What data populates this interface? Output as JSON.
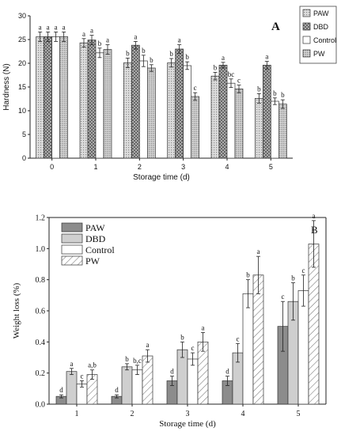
{
  "chart_data": [
    {
      "type": "bar",
      "panel_label": "A",
      "title": "",
      "xlabel": "Storage time (d)",
      "ylabel": "Hardness (N)",
      "ylim": [
        0,
        30
      ],
      "yticks": [
        0,
        5,
        10,
        15,
        20,
        25,
        30
      ],
      "categories": [
        "0",
        "1",
        "2",
        "3",
        "4",
        "5"
      ],
      "legend_position": "right-outside",
      "grid": false,
      "series": [
        {
          "name": "PAW",
          "pattern": "pawA",
          "values": [
            25.6,
            24.3,
            20.1,
            20.1,
            17.3,
            12.6
          ],
          "errors": [
            1.0,
            0.9,
            1.0,
            0.9,
            0.8,
            1.0
          ],
          "letters": [
            "a",
            "a",
            "b",
            "b",
            "b",
            "b"
          ]
        },
        {
          "name": "DBD",
          "pattern": "dbdA",
          "values": [
            25.6,
            24.9,
            23.8,
            23.0,
            19.6,
            19.6
          ],
          "errors": [
            1.0,
            1.0,
            0.8,
            0.9,
            0.6,
            0.8
          ],
          "letters": [
            "a",
            "a",
            "a",
            "a",
            "a",
            "a"
          ]
        },
        {
          "name": "Control",
          "pattern": "ctrlA",
          "values": [
            25.6,
            22.2,
            20.5,
            19.5,
            15.8,
            12.0
          ],
          "errors": [
            1.0,
            1.0,
            1.2,
            0.8,
            0.9,
            0.7
          ],
          "letters": [
            "a",
            "b",
            "b",
            "b",
            "bc",
            "b"
          ]
        },
        {
          "name": "PW",
          "pattern": "pwA",
          "values": [
            25.6,
            22.9,
            19.0,
            13.0,
            14.6,
            11.4
          ],
          "errors": [
            1.0,
            1.0,
            0.7,
            0.8,
            0.8,
            0.9
          ],
          "letters": [
            "a",
            "a",
            "b",
            "c",
            "c",
            "b"
          ]
        }
      ]
    },
    {
      "type": "bar",
      "panel_label": "B",
      "title": "",
      "xlabel": "Storage time (d)",
      "ylabel": "Weight loss (%)",
      "ylim": [
        0,
        1.2
      ],
      "yticks": [
        "0.0",
        "0.2",
        "0.4",
        "0.6",
        "0.8",
        "1.0",
        "1.2"
      ],
      "categories": [
        "1",
        "2",
        "3",
        "4",
        "5"
      ],
      "legend_position": "top-left",
      "grid": false,
      "series": [
        {
          "name": "PAW",
          "pattern": "pawB",
          "values": [
            0.05,
            0.05,
            0.15,
            0.15,
            0.5
          ],
          "errors": [
            0.01,
            0.01,
            0.03,
            0.03,
            0.16
          ],
          "letters": [
            "d",
            "d",
            "d",
            "d",
            "c"
          ]
        },
        {
          "name": "DBD",
          "pattern": "dbdB",
          "values": [
            0.21,
            0.24,
            0.35,
            0.33,
            0.66
          ],
          "errors": [
            0.02,
            0.02,
            0.05,
            0.06,
            0.12
          ],
          "letters": [
            "a",
            "b",
            "b",
            "c",
            "b"
          ]
        },
        {
          "name": "Control",
          "pattern": "ctrlB",
          "values": [
            0.13,
            0.22,
            0.29,
            0.71,
            0.73
          ],
          "errors": [
            0.02,
            0.03,
            0.04,
            0.09,
            0.1
          ],
          "letters": [
            "c",
            "b,c",
            "c",
            "b",
            "c"
          ]
        },
        {
          "name": "PW",
          "pattern": "pwB",
          "values": [
            0.19,
            0.31,
            0.4,
            0.83,
            1.03
          ],
          "errors": [
            0.03,
            0.04,
            0.06,
            0.12,
            0.15
          ],
          "letters": [
            "a,b",
            "a",
            "a",
            "a",
            "a"
          ]
        }
      ]
    }
  ]
}
